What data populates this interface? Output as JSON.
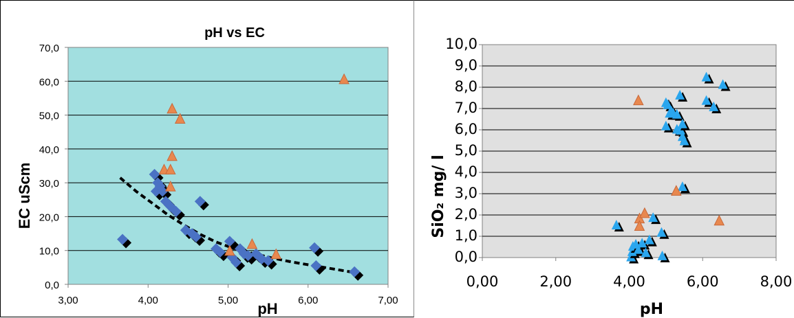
{
  "chart_data": [
    {
      "type": "scatter",
      "title": "pH vs EC",
      "xlabel": "pH",
      "ylabel": "EC uScm",
      "xlim": [
        3.0,
        7.0
      ],
      "ylim": [
        0.0,
        70.0
      ],
      "x_ticks": [
        "3,00",
        "4,00",
        "5,00",
        "6,00",
        "7,00"
      ],
      "y_ticks": [
        "0,0",
        "10,0",
        "20,0",
        "30,0",
        "40,0",
        "50,0",
        "60,0",
        "70,0"
      ],
      "plot_background": "#a2dfe0",
      "grid": "horizontal",
      "series": [
        {
          "marker": "diamond",
          "color": "#4a72c4",
          "shadow": "#000000",
          "points": [
            [
              3.68,
              13.3
            ],
            [
              4.08,
              32.5
            ],
            [
              4.1,
              27.5
            ],
            [
              4.12,
              30.0
            ],
            [
              4.15,
              29.0
            ],
            [
              4.18,
              27.5
            ],
            [
              4.22,
              24.5
            ],
            [
              4.28,
              23.0
            ],
            [
              4.35,
              21.5
            ],
            [
              4.47,
              16.0
            ],
            [
              4.55,
              15.0
            ],
            [
              4.6,
              14.0
            ],
            [
              4.65,
              24.5
            ],
            [
              4.85,
              10.5
            ],
            [
              4.9,
              9.5
            ],
            [
              5.02,
              12.7
            ],
            [
              5.05,
              8.0
            ],
            [
              5.1,
              6.5
            ],
            [
              5.15,
              10.5
            ],
            [
              5.2,
              9.0
            ],
            [
              5.25,
              8.5
            ],
            [
              5.35,
              9.0
            ],
            [
              5.42,
              7.5
            ],
            [
              5.5,
              7.0
            ],
            [
              6.08,
              10.8
            ],
            [
              6.1,
              5.5
            ],
            [
              6.58,
              3.7
            ]
          ]
        },
        {
          "marker": "triangle",
          "color": "#e8884f",
          "points": [
            [
              4.2,
              34.0
            ],
            [
              4.28,
              34.0
            ],
            [
              4.3,
              38.0
            ],
            [
              4.28,
              29.0
            ],
            [
              4.3,
              52.0
            ],
            [
              4.4,
              49.0
            ],
            [
              5.02,
              10.0
            ],
            [
              5.3,
              12.0
            ],
            [
              5.6,
              9.0
            ],
            [
              6.45,
              60.7
            ]
          ]
        },
        {
          "type": "line",
          "style": "dashed",
          "color": "#000000",
          "x": [
            3.65,
            3.85,
            4.05,
            4.25,
            4.45,
            4.65,
            4.85,
            5.05,
            5.3,
            5.55,
            5.8,
            6.05,
            6.3,
            6.6
          ],
          "y": [
            31.5,
            27.5,
            24.0,
            20.5,
            17.5,
            14.8,
            12.5,
            10.8,
            9.2,
            7.8,
            6.6,
            5.6,
            4.6,
            3.4
          ]
        }
      ]
    },
    {
      "type": "scatter",
      "title": "",
      "xlabel": "pH",
      "ylabel": "SiO₂ mg/ l",
      "xlim": [
        0.0,
        8.0
      ],
      "ylim": [
        0.0,
        10.0
      ],
      "x_ticks": [
        "0,00",
        "2,00",
        "4,00",
        "6,00",
        "8,00"
      ],
      "y_ticks": [
        "0,0",
        "1,0",
        "2,0",
        "3,0",
        "4,0",
        "5,0",
        "6,0",
        "7,0",
        "8,0",
        "9,0",
        "10,0"
      ],
      "plot_background": "#e0e0e0",
      "grid": "horizontal",
      "series": [
        {
          "marker": "triangle",
          "color": "#2aa6ee",
          "shadow": "#000000",
          "points": [
            [
              3.65,
              1.55
            ],
            [
              4.05,
              0.05
            ],
            [
              4.08,
              0.3
            ],
            [
              4.1,
              0.55
            ],
            [
              4.18,
              0.65
            ],
            [
              4.25,
              0.4
            ],
            [
              4.35,
              0.7
            ],
            [
              4.45,
              0.25
            ],
            [
              4.55,
              0.85
            ],
            [
              4.65,
              1.9
            ],
            [
              4.88,
              1.2
            ],
            [
              4.9,
              0.1
            ],
            [
              5.0,
              7.3
            ],
            [
              5.05,
              7.2
            ],
            [
              5.1,
              6.8
            ],
            [
              5.15,
              6.9
            ],
            [
              5.2,
              6.8
            ],
            [
              5.3,
              6.75
            ],
            [
              5.3,
              6.05
            ],
            [
              5.38,
              7.65
            ],
            [
              5.4,
              6.0
            ],
            [
              5.45,
              6.3
            ],
            [
              5.45,
              5.7
            ],
            [
              5.5,
              5.5
            ],
            [
              5.45,
              3.35
            ],
            [
              5.0,
              6.2
            ],
            [
              6.1,
              8.5
            ],
            [
              6.1,
              7.4
            ],
            [
              6.3,
              7.1
            ],
            [
              6.55,
              8.15
            ]
          ]
        },
        {
          "marker": "triangle",
          "color": "#e8884f",
          "points": [
            [
              4.25,
              7.4
            ],
            [
              4.28,
              1.85
            ],
            [
              4.28,
              1.5
            ],
            [
              4.42,
              2.1
            ],
            [
              5.28,
              3.15
            ],
            [
              6.45,
              1.75
            ]
          ]
        }
      ]
    }
  ]
}
